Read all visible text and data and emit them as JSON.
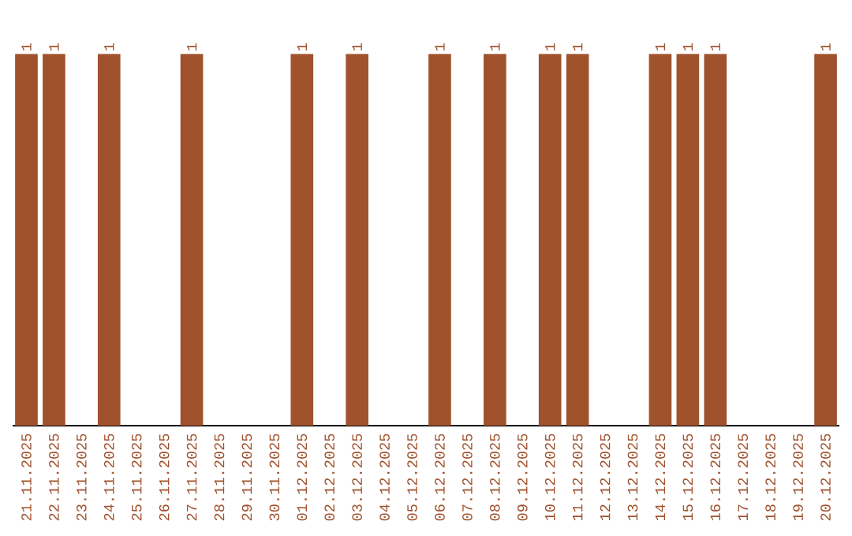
{
  "chart_data": {
    "type": "bar",
    "color": "#a0522d",
    "categories": [
      "21.11.2025",
      "22.11.2025",
      "23.11.2025",
      "24.11.2025",
      "25.11.2025",
      "26.11.2025",
      "27.11.2025",
      "28.11.2025",
      "29.11.2025",
      "30.11.2025",
      "01.12.2025",
      "02.12.2025",
      "03.12.2025",
      "04.12.2025",
      "05.12.2025",
      "06.12.2025",
      "07.12.2025",
      "08.12.2025",
      "09.12.2025",
      "10.12.2025",
      "11.12.2025",
      "12.12.2025",
      "13.12.2025",
      "14.12.2025",
      "15.12.2025",
      "16.12.2025",
      "17.12.2025",
      "18.12.2025",
      "19.12.2025",
      "20.12.2025"
    ],
    "values": [
      1,
      1,
      0,
      1,
      0,
      0,
      1,
      0,
      0,
      0,
      1,
      0,
      1,
      0,
      0,
      1,
      0,
      1,
      0,
      1,
      1,
      0,
      0,
      1,
      1,
      1,
      0,
      0,
      0,
      1
    ],
    "value_labels": [
      "1",
      "1",
      null,
      "1",
      null,
      null,
      "1",
      null,
      null,
      null,
      "1",
      null,
      "1",
      null,
      null,
      "1",
      null,
      "1",
      null,
      "1",
      "1",
      null,
      null,
      "1",
      "1",
      "1",
      null,
      null,
      null,
      "1"
    ],
    "grid": false
  }
}
